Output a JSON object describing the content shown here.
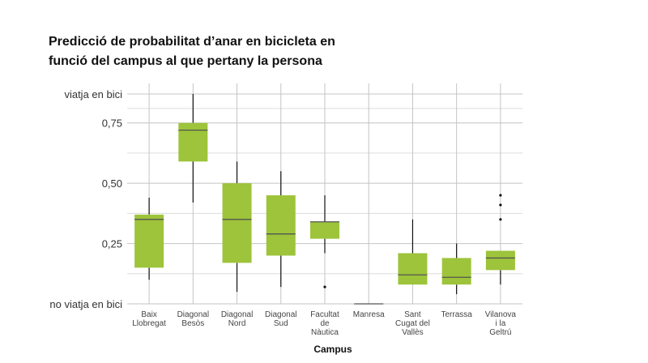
{
  "chart_data": {
    "type": "boxplot",
    "title_lines": [
      "Predicció de probabilitat d’anar en bicicleta en",
      "funció del campus al que pertany la persona"
    ],
    "xlabel": "Campus",
    "ylabel": "",
    "ylim": [
      0,
      0.87
    ],
    "yticks": [
      {
        "value": 0,
        "label": "no viatja en bici"
      },
      {
        "value": 0.25,
        "label": "0,25"
      },
      {
        "value": 0.5,
        "label": "0,50"
      },
      {
        "value": 0.75,
        "label": "0,75"
      },
      {
        "value": 0.87,
        "label": "viatja en bici"
      }
    ],
    "minor_y": [
      0.125,
      0.375,
      0.625,
      0.81
    ],
    "box_color": "#9dc43a",
    "median_color": "#555555",
    "categories": [
      {
        "label_lines": [
          "Baix",
          "Llobregat"
        ],
        "whisker_low": 0.1,
        "q1": 0.15,
        "median": 0.35,
        "q3": 0.37,
        "whisker_high": 0.44,
        "outliers": []
      },
      {
        "label_lines": [
          "Diagonal",
          "Besòs"
        ],
        "whisker_low": 0.42,
        "q1": 0.59,
        "median": 0.72,
        "q3": 0.75,
        "whisker_high": 0.87,
        "outliers": []
      },
      {
        "label_lines": [
          "Diagonal",
          "Nord"
        ],
        "whisker_low": 0.05,
        "q1": 0.17,
        "median": 0.35,
        "q3": 0.5,
        "whisker_high": 0.59,
        "outliers": []
      },
      {
        "label_lines": [
          "Diagonal",
          "Sud"
        ],
        "whisker_low": 0.07,
        "q1": 0.2,
        "median": 0.29,
        "q3": 0.45,
        "whisker_high": 0.55,
        "outliers": []
      },
      {
        "label_lines": [
          "Facultat",
          "de",
          "Nàutica"
        ],
        "whisker_low": 0.21,
        "q1": 0.27,
        "median": 0.34,
        "q3": 0.34,
        "whisker_high": 0.45,
        "outliers": [
          0.07
        ]
      },
      {
        "label_lines": [
          "Manresa"
        ],
        "whisker_low": 0.0,
        "q1": 0.0,
        "median": 0.0,
        "q3": 0.0,
        "whisker_high": 0.0,
        "outliers": []
      },
      {
        "label_lines": [
          "Sant",
          "Cugat del",
          "Vallès"
        ],
        "whisker_low": 0.08,
        "q1": 0.08,
        "median": 0.12,
        "q3": 0.21,
        "whisker_high": 0.35,
        "outliers": []
      },
      {
        "label_lines": [
          "Terrassa"
        ],
        "whisker_low": 0.04,
        "q1": 0.08,
        "median": 0.11,
        "q3": 0.19,
        "whisker_high": 0.25,
        "outliers": []
      },
      {
        "label_lines": [
          "Vilanova",
          "i la",
          "Geltrú"
        ],
        "whisker_low": 0.08,
        "q1": 0.14,
        "median": 0.19,
        "q3": 0.22,
        "whisker_high": 0.22,
        "outliers": [
          0.35,
          0.41,
          0.45
        ]
      }
    ]
  }
}
